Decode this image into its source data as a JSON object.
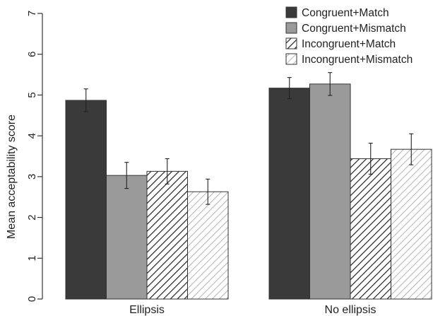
{
  "chart_data": {
    "type": "bar",
    "title": "",
    "xlabel": "",
    "ylabel": "Mean acceptability score",
    "ylim": [
      0,
      7
    ],
    "yticks": [
      0,
      1,
      2,
      3,
      4,
      5,
      6,
      7
    ],
    "grid": false,
    "legend_position": "top-right",
    "categories": [
      "Ellipsis",
      "No ellipsis"
    ],
    "series": [
      {
        "name": "Congruent+Match",
        "values": [
          4.87,
          5.17
        ],
        "errors": [
          0.28,
          0.26
        ],
        "fill": "solid",
        "color": "#3a3a3a"
      },
      {
        "name": "Congruent+Mismatch",
        "values": [
          3.03,
          5.27
        ],
        "errors": [
          0.32,
          0.28
        ],
        "fill": "solid",
        "color": "#9a9a9a"
      },
      {
        "name": "Incongruent+Match",
        "values": [
          3.13,
          3.44
        ],
        "errors": [
          0.31,
          0.38
        ],
        "fill": "hatch-dark",
        "color": "#222222"
      },
      {
        "name": "Incongruent+Mismatch",
        "values": [
          2.63,
          3.67
        ],
        "errors": [
          0.31,
          0.38
        ],
        "fill": "hatch-light",
        "color": "#aaaaaa"
      }
    ]
  }
}
